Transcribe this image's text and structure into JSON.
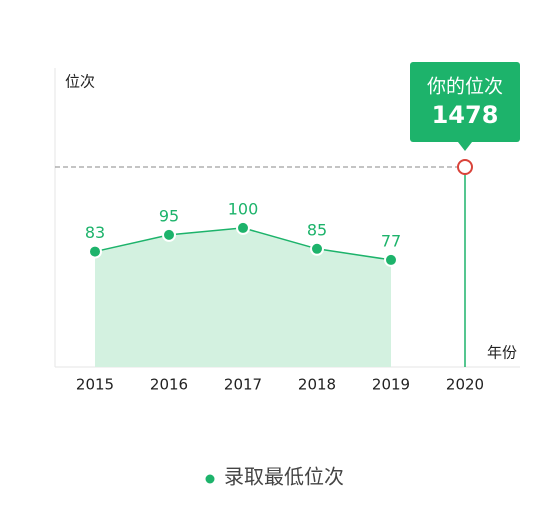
{
  "chart_data": {
    "type": "line",
    "y_label": "位次",
    "x_label": "年份",
    "categories": [
      "2015",
      "2016",
      "2017",
      "2018",
      "2019",
      "2020"
    ],
    "series": [
      {
        "name": "录取最低位次",
        "color": "#1db36b",
        "values": [
          83,
          95,
          100,
          85,
          77,
          null
        ]
      }
    ],
    "area_color": "#d3f1e0",
    "ylim": [
      0,
      215
    ],
    "annotation": {
      "category": "2020",
      "label": "你的位次",
      "value": 1478,
      "color": "#1db36b",
      "marker_color": "#d9433a"
    }
  }
}
